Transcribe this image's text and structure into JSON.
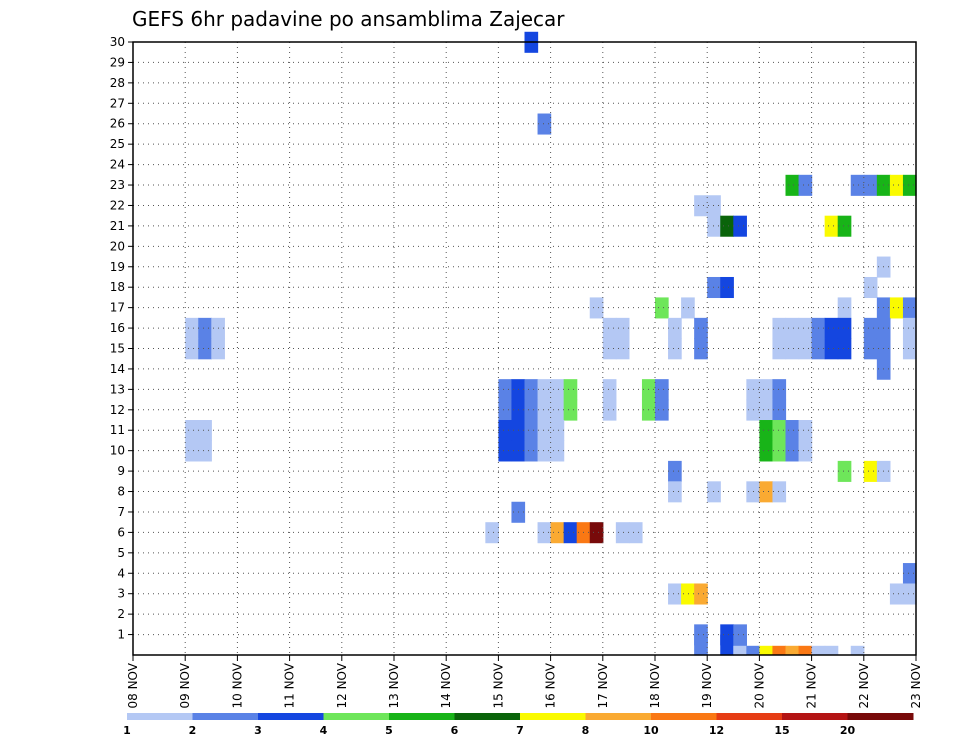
{
  "chart_data": {
    "type": "heatmap",
    "title": "GEFS 6hr padavine po ansamblima Zajecar",
    "x_tick_labels": [
      "08 NOV",
      "09 NOV",
      "10 NOV",
      "11 NOV",
      "12 NOV",
      "13 NOV",
      "14 NOV",
      "15 NOV",
      "16 NOV",
      "17 NOV",
      "18 NOV",
      "19 NOV",
      "20 NOV",
      "21 NOV",
      "22 NOV",
      "23 NOV"
    ],
    "y_tick_labels": [
      "1",
      "2",
      "3",
      "4",
      "5",
      "6",
      "7",
      "8",
      "9",
      "10",
      "11",
      "12",
      "13",
      "14",
      "15",
      "16",
      "17",
      "18",
      "19",
      "20",
      "21",
      "22",
      "23",
      "24",
      "25",
      "26",
      "27",
      "28",
      "29",
      "30"
    ],
    "ylim": [
      0,
      30
    ],
    "x_step_hours": 6,
    "grid": true,
    "legend": {
      "placement": "bottom",
      "labels": [
        "1",
        "2",
        "3",
        "4",
        "5",
        "6",
        "7",
        "8",
        "10",
        "12",
        "15",
        "20"
      ],
      "colors": [
        "#b4c8f4",
        "#5a82e6",
        "#1446e0",
        "#6ee65a",
        "#18b418",
        "#0a640a",
        "#fafa00",
        "#faaa32",
        "#fa7814",
        "#e63c14",
        "#b41414",
        "#780a0a"
      ]
    },
    "cells": [
      {
        "m": 30,
        "t": 30,
        "c": 2
      },
      {
        "m": 26,
        "t": 31,
        "c": 1
      },
      {
        "m": 23,
        "t": 50,
        "c": 4
      },
      {
        "m": 23,
        "t": 51,
        "c": 1
      },
      {
        "m": 23,
        "t": 55,
        "c": 1
      },
      {
        "m": 23,
        "t": 56,
        "c": 1
      },
      {
        "m": 23,
        "t": 57,
        "c": 4
      },
      {
        "m": 23,
        "t": 58,
        "c": 6
      },
      {
        "m": 23,
        "t": 59,
        "c": 4
      },
      {
        "m": 22,
        "t": 43,
        "c": 0
      },
      {
        "m": 22,
        "t": 44,
        "c": 0
      },
      {
        "m": 21,
        "t": 44,
        "c": 0
      },
      {
        "m": 21,
        "t": 45,
        "c": 5
      },
      {
        "m": 21,
        "t": 46,
        "c": 2
      },
      {
        "m": 21,
        "t": 53,
        "c": 6
      },
      {
        "m": 21,
        "t": 54,
        "c": 4
      },
      {
        "m": 19,
        "t": 57,
        "c": 0
      },
      {
        "m": 18,
        "t": 44,
        "c": 1
      },
      {
        "m": 18,
        "t": 45,
        "c": 2
      },
      {
        "m": 18,
        "t": 56,
        "c": 0
      },
      {
        "m": 17,
        "t": 35,
        "c": 0
      },
      {
        "m": 17,
        "t": 40,
        "c": 3
      },
      {
        "m": 17,
        "t": 42,
        "c": 0
      },
      {
        "m": 17,
        "t": 54,
        "c": 0
      },
      {
        "m": 17,
        "t": 57,
        "c": 1
      },
      {
        "m": 17,
        "t": 58,
        "c": 6
      },
      {
        "m": 17,
        "t": 59,
        "c": 1
      },
      {
        "m": 16,
        "t": 4,
        "c": 0
      },
      {
        "m": 16,
        "t": 5,
        "c": 1
      },
      {
        "m": 16,
        "t": 6,
        "c": 0
      },
      {
        "m": 16,
        "t": 36,
        "c": 0
      },
      {
        "m": 16,
        "t": 37,
        "c": 0
      },
      {
        "m": 16,
        "t": 41,
        "c": 0
      },
      {
        "m": 16,
        "t": 43,
        "c": 1
      },
      {
        "m": 16,
        "t": 49,
        "c": 0
      },
      {
        "m": 16,
        "t": 50,
        "c": 0
      },
      {
        "m": 16,
        "t": 51,
        "c": 0
      },
      {
        "m": 16,
        "t": 52,
        "c": 1
      },
      {
        "m": 16,
        "t": 53,
        "c": 2
      },
      {
        "m": 16,
        "t": 54,
        "c": 2
      },
      {
        "m": 16,
        "t": 56,
        "c": 1
      },
      {
        "m": 16,
        "t": 57,
        "c": 1
      },
      {
        "m": 16,
        "t": 59,
        "c": 0
      },
      {
        "m": 15,
        "t": 4,
        "c": 0
      },
      {
        "m": 15,
        "t": 5,
        "c": 1
      },
      {
        "m": 15,
        "t": 6,
        "c": 0
      },
      {
        "m": 15,
        "t": 36,
        "c": 0
      },
      {
        "m": 15,
        "t": 37,
        "c": 0
      },
      {
        "m": 15,
        "t": 41,
        "c": 0
      },
      {
        "m": 15,
        "t": 43,
        "c": 1
      },
      {
        "m": 15,
        "t": 49,
        "c": 0
      },
      {
        "m": 15,
        "t": 50,
        "c": 0
      },
      {
        "m": 15,
        "t": 51,
        "c": 0
      },
      {
        "m": 15,
        "t": 52,
        "c": 1
      },
      {
        "m": 15,
        "t": 53,
        "c": 2
      },
      {
        "m": 15,
        "t": 54,
        "c": 2
      },
      {
        "m": 15,
        "t": 56,
        "c": 1
      },
      {
        "m": 15,
        "t": 57,
        "c": 1
      },
      {
        "m": 15,
        "t": 59,
        "c": 0
      },
      {
        "m": 14,
        "t": 57,
        "c": 1
      },
      {
        "m": 13,
        "t": 28,
        "c": 1
      },
      {
        "m": 13,
        "t": 29,
        "c": 2
      },
      {
        "m": 13,
        "t": 30,
        "c": 1
      },
      {
        "m": 13,
        "t": 31,
        "c": 0
      },
      {
        "m": 13,
        "t": 32,
        "c": 0
      },
      {
        "m": 13,
        "t": 33,
        "c": 3
      },
      {
        "m": 13,
        "t": 36,
        "c": 0
      },
      {
        "m": 13,
        "t": 39,
        "c": 3
      },
      {
        "m": 13,
        "t": 40,
        "c": 1
      },
      {
        "m": 13,
        "t": 47,
        "c": 0
      },
      {
        "m": 13,
        "t": 48,
        "c": 0
      },
      {
        "m": 13,
        "t": 49,
        "c": 1
      },
      {
        "m": 12,
        "t": 28,
        "c": 1
      },
      {
        "m": 12,
        "t": 29,
        "c": 2
      },
      {
        "m": 12,
        "t": 30,
        "c": 1
      },
      {
        "m": 12,
        "t": 31,
        "c": 0
      },
      {
        "m": 12,
        "t": 32,
        "c": 0
      },
      {
        "m": 12,
        "t": 33,
        "c": 3
      },
      {
        "m": 12,
        "t": 36,
        "c": 0
      },
      {
        "m": 12,
        "t": 39,
        "c": 3
      },
      {
        "m": 12,
        "t": 40,
        "c": 1
      },
      {
        "m": 12,
        "t": 47,
        "c": 0
      },
      {
        "m": 12,
        "t": 48,
        "c": 0
      },
      {
        "m": 12,
        "t": 49,
        "c": 1
      },
      {
        "m": 11,
        "t": 4,
        "c": 0
      },
      {
        "m": 11,
        "t": 5,
        "c": 0
      },
      {
        "m": 11,
        "t": 28,
        "c": 2
      },
      {
        "m": 11,
        "t": 29,
        "c": 2
      },
      {
        "m": 11,
        "t": 30,
        "c": 1
      },
      {
        "m": 11,
        "t": 31,
        "c": 0
      },
      {
        "m": 11,
        "t": 32,
        "c": 0
      },
      {
        "m": 11,
        "t": 48,
        "c": 4
      },
      {
        "m": 11,
        "t": 49,
        "c": 3
      },
      {
        "m": 11,
        "t": 50,
        "c": 1
      },
      {
        "m": 11,
        "t": 51,
        "c": 0
      },
      {
        "m": 10,
        "t": 4,
        "c": 0
      },
      {
        "m": 10,
        "t": 5,
        "c": 0
      },
      {
        "m": 10,
        "t": 28,
        "c": 2
      },
      {
        "m": 10,
        "t": 29,
        "c": 2
      },
      {
        "m": 10,
        "t": 30,
        "c": 1
      },
      {
        "m": 10,
        "t": 31,
        "c": 0
      },
      {
        "m": 10,
        "t": 32,
        "c": 0
      },
      {
        "m": 10,
        "t": 48,
        "c": 4
      },
      {
        "m": 10,
        "t": 49,
        "c": 3
      },
      {
        "m": 10,
        "t": 50,
        "c": 1
      },
      {
        "m": 10,
        "t": 51,
        "c": 0
      },
      {
        "m": 9,
        "t": 41,
        "c": 1
      },
      {
        "m": 9,
        "t": 54,
        "c": 3
      },
      {
        "m": 9,
        "t": 56,
        "c": 6
      },
      {
        "m": 9,
        "t": 57,
        "c": 0
      },
      {
        "m": 8,
        "t": 41,
        "c": 0
      },
      {
        "m": 8,
        "t": 44,
        "c": 0
      },
      {
        "m": 8,
        "t": 47,
        "c": 0
      },
      {
        "m": 8,
        "t": 48,
        "c": 7
      },
      {
        "m": 8,
        "t": 49,
        "c": 0
      },
      {
        "m": 7,
        "t": 29,
        "c": 1
      },
      {
        "m": 6,
        "t": 27,
        "c": 0
      },
      {
        "m": 6,
        "t": 31,
        "c": 0
      },
      {
        "m": 6,
        "t": 32,
        "c": 7
      },
      {
        "m": 6,
        "t": 33,
        "c": 2
      },
      {
        "m": 6,
        "t": 34,
        "c": 8
      },
      {
        "m": 6,
        "t": 35,
        "c": 11
      },
      {
        "m": 6,
        "t": 37,
        "c": 0
      },
      {
        "m": 6,
        "t": 38,
        "c": 0
      },
      {
        "m": 4,
        "t": 59,
        "c": 1
      },
      {
        "m": 3,
        "t": 41,
        "c": 0
      },
      {
        "m": 3,
        "t": 42,
        "c": 6
      },
      {
        "m": 3,
        "t": 43,
        "c": 7
      },
      {
        "m": 3,
        "t": 58,
        "c": 0
      },
      {
        "m": 3,
        "t": 59,
        "c": 0
      },
      {
        "m": 1,
        "t": 43,
        "c": 1
      },
      {
        "m": 1,
        "t": 45,
        "c": 2
      },
      {
        "m": 1,
        "t": 46,
        "c": 1
      },
      {
        "m": 0.5,
        "t": 43,
        "c": 1
      },
      {
        "m": 0.5,
        "t": 45,
        "c": 2
      },
      {
        "m": 0.5,
        "t": 46,
        "c": 1
      }
    ],
    "bottom_strip": [
      {
        "t": 46,
        "c": 0
      },
      {
        "t": 47,
        "c": 1
      },
      {
        "t": 48,
        "c": 6
      },
      {
        "t": 49,
        "c": 8
      },
      {
        "t": 50,
        "c": 7
      },
      {
        "t": 51,
        "c": 8
      },
      {
        "t": 52,
        "c": 0
      },
      {
        "t": 53,
        "c": 0
      },
      {
        "t": 55,
        "c": 0
      }
    ]
  }
}
